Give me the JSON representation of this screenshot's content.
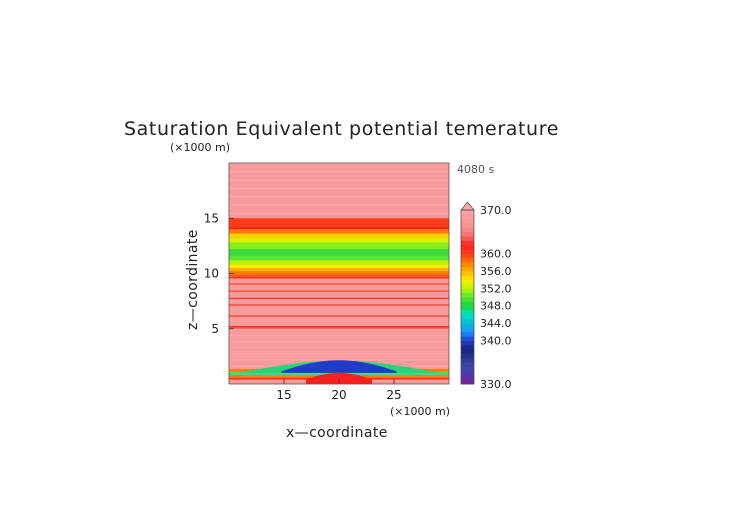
{
  "chart_data": {
    "type": "heatmap",
    "title": "Saturation Equivalent potential temerature",
    "xlabel": "x—coordinate",
    "ylabel": "z—coordinate",
    "x_unit": "(×1000 m)",
    "y_unit": "(×1000 m)",
    "time_label": "4080 s",
    "xlim": [
      10,
      30
    ],
    "ylim": [
      0,
      20
    ],
    "x_ticks": [
      "15",
      "20",
      "25"
    ],
    "y_ticks": [
      "5",
      "10",
      "15"
    ],
    "colorbar": {
      "min": 330.0,
      "max": 370.0,
      "labels": [
        "370.0",
        "360.0",
        "356.0",
        "352.0",
        "348.0",
        "344.0",
        "340.0",
        "330.0"
      ],
      "extend_max": true
    },
    "horizontal_bands": [
      {
        "z": [
          14.0,
          14.2
        ],
        "value": 362
      },
      {
        "z": [
          14.2,
          15.0
        ],
        "value": 360
      },
      {
        "z": [
          13.6,
          14.0
        ],
        "value": 358
      },
      {
        "z": [
          13.2,
          13.6
        ],
        "value": 355
      },
      {
        "z": [
          12.8,
          13.2
        ],
        "value": 353
      },
      {
        "z": [
          12.2,
          12.8
        ],
        "value": 351
      },
      {
        "z": [
          11.6,
          12.2
        ],
        "value": 349
      },
      {
        "z": [
          11.2,
          11.6
        ],
        "value": 350
      },
      {
        "z": [
          10.8,
          11.2
        ],
        "value": 352
      },
      {
        "z": [
          10.5,
          10.8
        ],
        "value": 354
      },
      {
        "z": [
          10.2,
          10.5
        ],
        "value": 356
      },
      {
        "z": [
          9.9,
          10.2
        ],
        "value": 358
      },
      {
        "z": [
          9.7,
          9.9
        ],
        "value": 359
      },
      {
        "z": [
          9.55,
          9.7
        ],
        "value": 361
      },
      {
        "z": [
          9.0,
          9.1
        ],
        "value": 360
      },
      {
        "z": [
          8.35,
          8.45
        ],
        "value": 360
      },
      {
        "z": [
          7.7,
          7.8
        ],
        "value": 361
      },
      {
        "z": [
          7.1,
          7.2
        ],
        "value": 361
      },
      {
        "z": [
          6.1,
          6.2
        ],
        "value": 361
      },
      {
        "z": [
          5.1,
          5.25
        ],
        "value": 361
      },
      {
        "z": [
          4.95,
          5.1
        ],
        "value": 364
      },
      {
        "z": [
          1.1,
          1.35
        ],
        "value": 358
      },
      {
        "z": [
          0.95,
          1.1
        ],
        "value": 350
      },
      {
        "z": [
          0.8,
          0.95
        ],
        "value": 346
      },
      {
        "z": [
          0.55,
          0.8
        ],
        "value": 358
      },
      {
        "z": [
          0.4,
          0.55
        ],
        "value": 361
      }
    ],
    "cold_dome": {
      "x_center": 20,
      "half_width": 9.5,
      "z_base": 1.0,
      "z_peak": 2.1,
      "value": 340
    },
    "surface_warm_anomaly": {
      "x_center": 20,
      "half_width": 3,
      "z_top": 1.0,
      "value": 362
    }
  }
}
